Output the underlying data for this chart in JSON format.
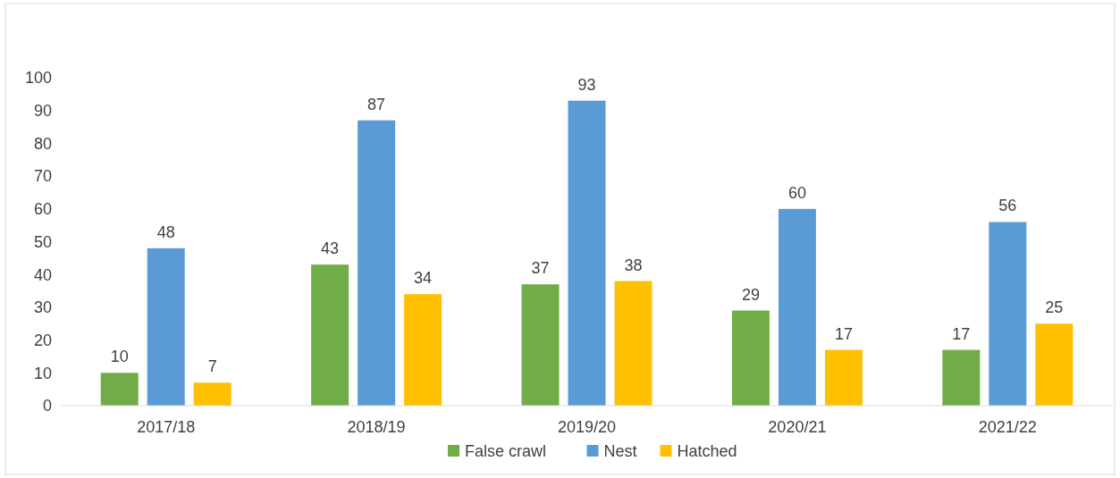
{
  "chart_data": {
    "type": "bar",
    "categories": [
      "2017/18",
      "2018/19",
      "2019/20",
      "2020/21",
      "2021/22"
    ],
    "series": [
      {
        "name": "False crawl",
        "color": "#70ad47",
        "values": [
          10,
          43,
          37,
          29,
          17
        ]
      },
      {
        "name": "Nest",
        "color": "#5b9bd5",
        "values": [
          48,
          87,
          93,
          60,
          56
        ]
      },
      {
        "name": "Hatched",
        "color": "#ffc000",
        "values": [
          7,
          34,
          38,
          17,
          25
        ]
      }
    ],
    "ylim": [
      0,
      100
    ],
    "yticks": [
      0,
      10,
      20,
      30,
      40,
      50,
      60,
      70,
      80,
      90,
      100
    ],
    "grid": false,
    "legend": "bottom",
    "data_labels": true
  }
}
